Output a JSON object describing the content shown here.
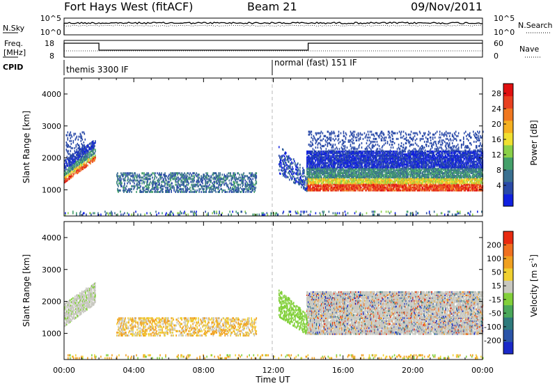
{
  "header": {
    "station": "Fort Hays West (fitACF)",
    "beam": "Beam 21",
    "date": "09/Nov/2011"
  },
  "left_labels": {
    "nsky": "N.Sky",
    "nsky_ticks": [
      "10^5",
      "10^0"
    ],
    "freq_line1": "Freq.",
    "freq_line2": "[MHz]",
    "freq_ticks": [
      "18",
      "8"
    ],
    "cpid": "CPID"
  },
  "right_labels": {
    "nsearch": "N.Search",
    "nsearch_ticks": [
      "10^5",
      "10^0"
    ],
    "nave": "Nave",
    "nave_ticks": [
      "60",
      "0"
    ]
  },
  "cpid_segments": [
    {
      "label": "themis 3300 IF",
      "start_hour": 0
    },
    {
      "label": "normal (fast) 151 IF",
      "start_hour": 12
    }
  ],
  "chart_data": [
    {
      "type": "heatmap",
      "panel": "power",
      "ylabel": "Slant Range [km]",
      "y_ticks": [
        1000,
        2000,
        3000,
        4000
      ],
      "ylim": [
        180,
        4500
      ],
      "x_ticks": [
        0,
        4,
        8,
        12,
        16,
        20,
        24
      ],
      "xlim_hours": [
        0,
        24
      ],
      "colorbar_label": "Power [dB]",
      "colorbar_ticks": [
        "4",
        "8",
        "12",
        "16",
        "20",
        "24",
        "28"
      ],
      "colors": [
        "#1020e0",
        "#2a4aa8",
        "#3a7090",
        "#44a06a",
        "#8ad048",
        "#f0e030",
        "#f5b020",
        "#f07820",
        "#e84020",
        "#e01010"
      ]
    },
    {
      "type": "heatmap",
      "panel": "velocity",
      "ylabel": "Slant Range [km]",
      "y_ticks": [
        1000,
        2000,
        3000,
        4000
      ],
      "ylim": [
        180,
        4500
      ],
      "x_ticks": [
        0,
        4,
        8,
        12,
        16,
        20,
        24
      ],
      "xlim_hours": [
        0,
        24
      ],
      "colorbar_label": "Velocity [m s^-1]",
      "colorbar_ticks": [
        "200",
        "100",
        "50",
        "15",
        "-15",
        "-50",
        "-100",
        "-200"
      ],
      "colors": [
        "#1a28c8",
        "#2a54a8",
        "#2e7a7c",
        "#4aa85a",
        "#82d03a",
        "#c8c8c0",
        "#f0d030",
        "#f0a020",
        "#f07020",
        "#e82a10"
      ]
    }
  ],
  "x_axis": {
    "tick_labels": [
      "00:00",
      "04:00",
      "08:00",
      "12:00",
      "16:00",
      "20:00",
      "00:00"
    ],
    "label": "Time UT"
  },
  "colors": {
    "grey": "#c8c8c0",
    "dashed_line": "#b8b8b8"
  }
}
